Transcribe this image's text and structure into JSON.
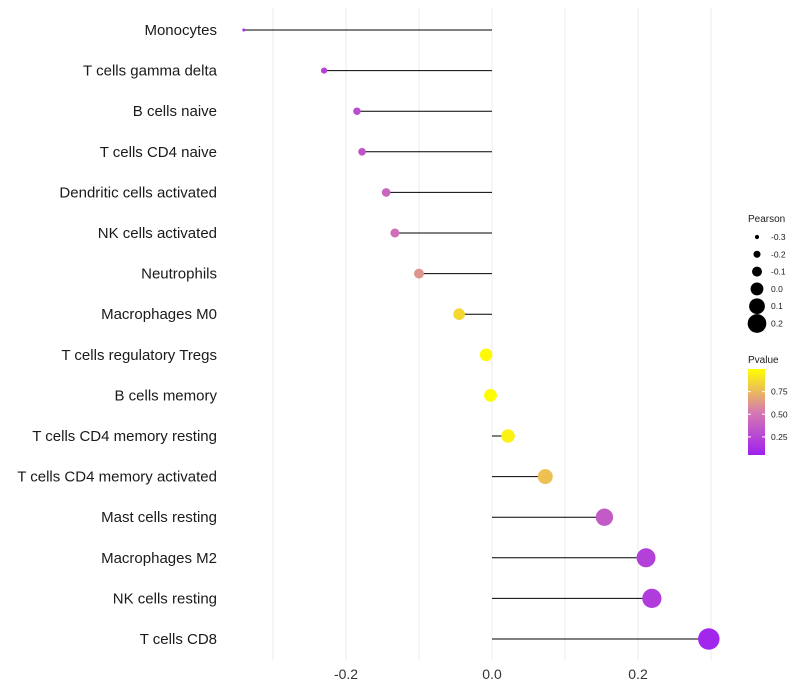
{
  "chart_data": {
    "type": "lollipop",
    "title": "",
    "xlabel": "",
    "ylabel": "",
    "xlim": [
      -0.34,
      0.3
    ],
    "xticks": [
      -0.2,
      0.0,
      0.2
    ],
    "xtick_labels": [
      "-0.2",
      "0.0",
      "0.2"
    ],
    "categories": [
      "Monocytes",
      "T cells gamma delta",
      "B cells naive",
      "T cells CD4 naive",
      "Dendritic cells activated",
      "NK cells activated",
      "Neutrophils",
      "Macrophages M0",
      "T cells regulatory  Tregs",
      "B cells memory",
      "T cells CD4 memory resting",
      "T cells CD4 memory activated",
      "Mast cells resting",
      "Macrophages M2",
      "NK cells resting",
      "T cells CD8"
    ],
    "values": [
      -0.34,
      -0.23,
      -0.185,
      -0.178,
      -0.145,
      -0.133,
      -0.1,
      -0.045,
      -0.008,
      -0.002,
      0.022,
      0.073,
      0.154,
      0.211,
      0.219,
      0.297
    ],
    "pvalues": [
      0.12,
      0.22,
      0.28,
      0.32,
      0.42,
      0.46,
      0.62,
      0.86,
      0.98,
      0.99,
      0.95,
      0.78,
      0.36,
      0.22,
      0.2,
      0.08
    ],
    "size_legend": {
      "title": "Pearson",
      "labels": [
        "-0.3",
        "-0.2",
        "-0.1",
        "0.0",
        "0.1",
        "0.2"
      ],
      "values": [
        -0.3,
        -0.2,
        -0.1,
        0.0,
        0.1,
        0.2
      ]
    },
    "color_legend": {
      "title": "Pvalue",
      "labels": [
        "0.75",
        "0.50",
        "0.25"
      ],
      "values": [
        0.75,
        0.5,
        0.25
      ],
      "range": [
        0.05,
        1.0
      ],
      "low_color": "#a020f0",
      "mid_color": "#d67ab0",
      "high_color": "#ffff00"
    },
    "grid": true,
    "stem_color": "#000000"
  }
}
